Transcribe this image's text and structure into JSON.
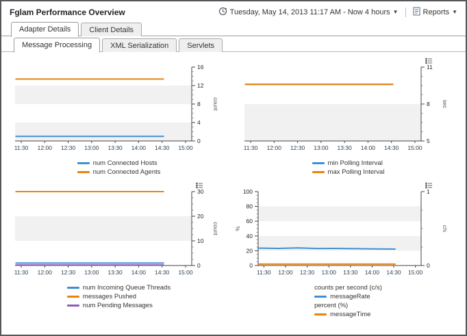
{
  "header": {
    "title": "Fglam Performance Overview",
    "time_range": "Tuesday, May 14, 2013 11:17 AM - Now 4 hours",
    "reports_label": "Reports"
  },
  "tabs_primary": [
    {
      "label": "Adapter Details",
      "active": true
    },
    {
      "label": "Client Details",
      "active": false
    }
  ],
  "tabs_secondary": [
    {
      "label": "Message Processing",
      "active": true
    },
    {
      "label": "XML Serialization",
      "active": false
    },
    {
      "label": "Servlets",
      "active": false
    }
  ],
  "colors": {
    "blue": "#3d8fd4",
    "orange": "#e8820c",
    "purple": "#8f5bb8"
  },
  "chart_data": [
    {
      "type": "line",
      "x_labels": [
        "11:30",
        "12:00",
        "12:30",
        "13:00",
        "13:30",
        "14:00",
        "14:30",
        "15:00"
      ],
      "x_end": 0.84,
      "options_icon": false,
      "axes": {
        "right": {
          "label": "count",
          "lim": [
            0,
            16
          ],
          "ticks": [
            0,
            4,
            8,
            12,
            16
          ]
        }
      },
      "series": [
        {
          "name": "num Connected Hosts",
          "axis": "right",
          "color": "#3d8fd4",
          "values": [
            1,
            1,
            1,
            1,
            1,
            1,
            1,
            1
          ]
        },
        {
          "name": "num Connected Agents",
          "axis": "right",
          "color": "#e8820c",
          "values": [
            13.4,
            13.4,
            13.4,
            13.4,
            13.4,
            13.4,
            13.4,
            13.4
          ]
        }
      ],
      "legend": [
        {
          "swatch": "#3d8fd4",
          "label": "num Connected Hosts"
        },
        {
          "swatch": "#e8820c",
          "label": "num Connected Agents"
        }
      ]
    },
    {
      "type": "line",
      "x_labels": [
        "11:30",
        "12:00",
        "12:30",
        "13:00",
        "13:30",
        "14:00",
        "14:30",
        "15:00"
      ],
      "x_end": 0.84,
      "options_icon": true,
      "axes": {
        "right": {
          "label": "sec",
          "lim": [
            5,
            11
          ],
          "ticks": [
            5,
            8,
            11
          ]
        }
      },
      "series": [
        {
          "name": "min Polling Interval",
          "axis": "right",
          "color": "#3d8fd4",
          "values": [
            9.6,
            9.6,
            9.6,
            9.6,
            9.6,
            9.6,
            9.6,
            9.6
          ]
        },
        {
          "name": "max Polling Interval",
          "axis": "right",
          "color": "#e8820c",
          "values": [
            9.6,
            9.6,
            9.6,
            9.6,
            9.6,
            9.6,
            9.6,
            9.6
          ]
        }
      ],
      "legend": [
        {
          "swatch": "#3d8fd4",
          "label": "min Polling Interval"
        },
        {
          "swatch": "#e8820c",
          "label": "max Polling Interval"
        }
      ]
    },
    {
      "type": "line",
      "x_labels": [
        "11:30",
        "12:00",
        "12:30",
        "13:00",
        "13:30",
        "14:00",
        "14:30",
        "15:00"
      ],
      "x_end": 0.84,
      "options_icon": true,
      "axes": {
        "right": {
          "label": "count",
          "lim": [
            0,
            30
          ],
          "ticks": [
            0,
            10,
            20,
            30
          ]
        }
      },
      "series": [
        {
          "name": "num Incoming Queue Threads",
          "axis": "right",
          "color": "#3d8fd4",
          "values": [
            1,
            1,
            1,
            1,
            1,
            1,
            1,
            1
          ]
        },
        {
          "name": "messages Pushed",
          "axis": "right",
          "color": "#e8820c",
          "values": [
            30,
            30,
            30,
            30,
            30,
            30,
            30,
            30
          ]
        },
        {
          "name": "num Pending Messages",
          "axis": "right",
          "color": "#8f5bb8",
          "values": [
            0.2,
            0.2,
            0.2,
            0.2,
            0.2,
            0.2,
            0.2,
            0.2
          ]
        }
      ],
      "legend": [
        {
          "swatch": "#3d8fd4",
          "label": "num Incoming Queue Threads"
        },
        {
          "swatch": "#e8820c",
          "label": "messages Pushed"
        },
        {
          "swatch": "#8f5bb8",
          "label": "num Pending Messages"
        }
      ]
    },
    {
      "type": "line",
      "x_labels": [
        "11:30",
        "12:00",
        "12:30",
        "13:00",
        "13:30",
        "14:00",
        "14:30",
        "15:00"
      ],
      "x_end": 0.84,
      "options_icon": true,
      "axes": {
        "left": {
          "label": "%",
          "lim": [
            0,
            100
          ],
          "ticks": [
            0,
            20,
            40,
            60,
            80,
            100
          ]
        },
        "right": {
          "label": "c/s",
          "lim": [
            0,
            1
          ],
          "ticks": [
            0,
            1
          ]
        }
      },
      "series": [
        {
          "name": "messageRate",
          "axis": "left",
          "color": "#3d8fd4",
          "values": [
            23.5,
            23.2,
            23.8,
            23.0,
            23.1,
            22.8,
            22.4,
            22.2
          ]
        },
        {
          "name": "messageTime",
          "axis": "right",
          "color": "#e8820c",
          "values": [
            0.02,
            0.02,
            0.02,
            0.02,
            0.02,
            0.02,
            0.02,
            0.02
          ]
        }
      ],
      "legend": [
        {
          "swatch": null,
          "label": "counts per second (c/s)"
        },
        {
          "swatch": "#3d8fd4",
          "label": "messageRate"
        },
        {
          "swatch": null,
          "label": "percent (%)"
        },
        {
          "swatch": "#e8820c",
          "label": "messageTime"
        }
      ]
    }
  ]
}
